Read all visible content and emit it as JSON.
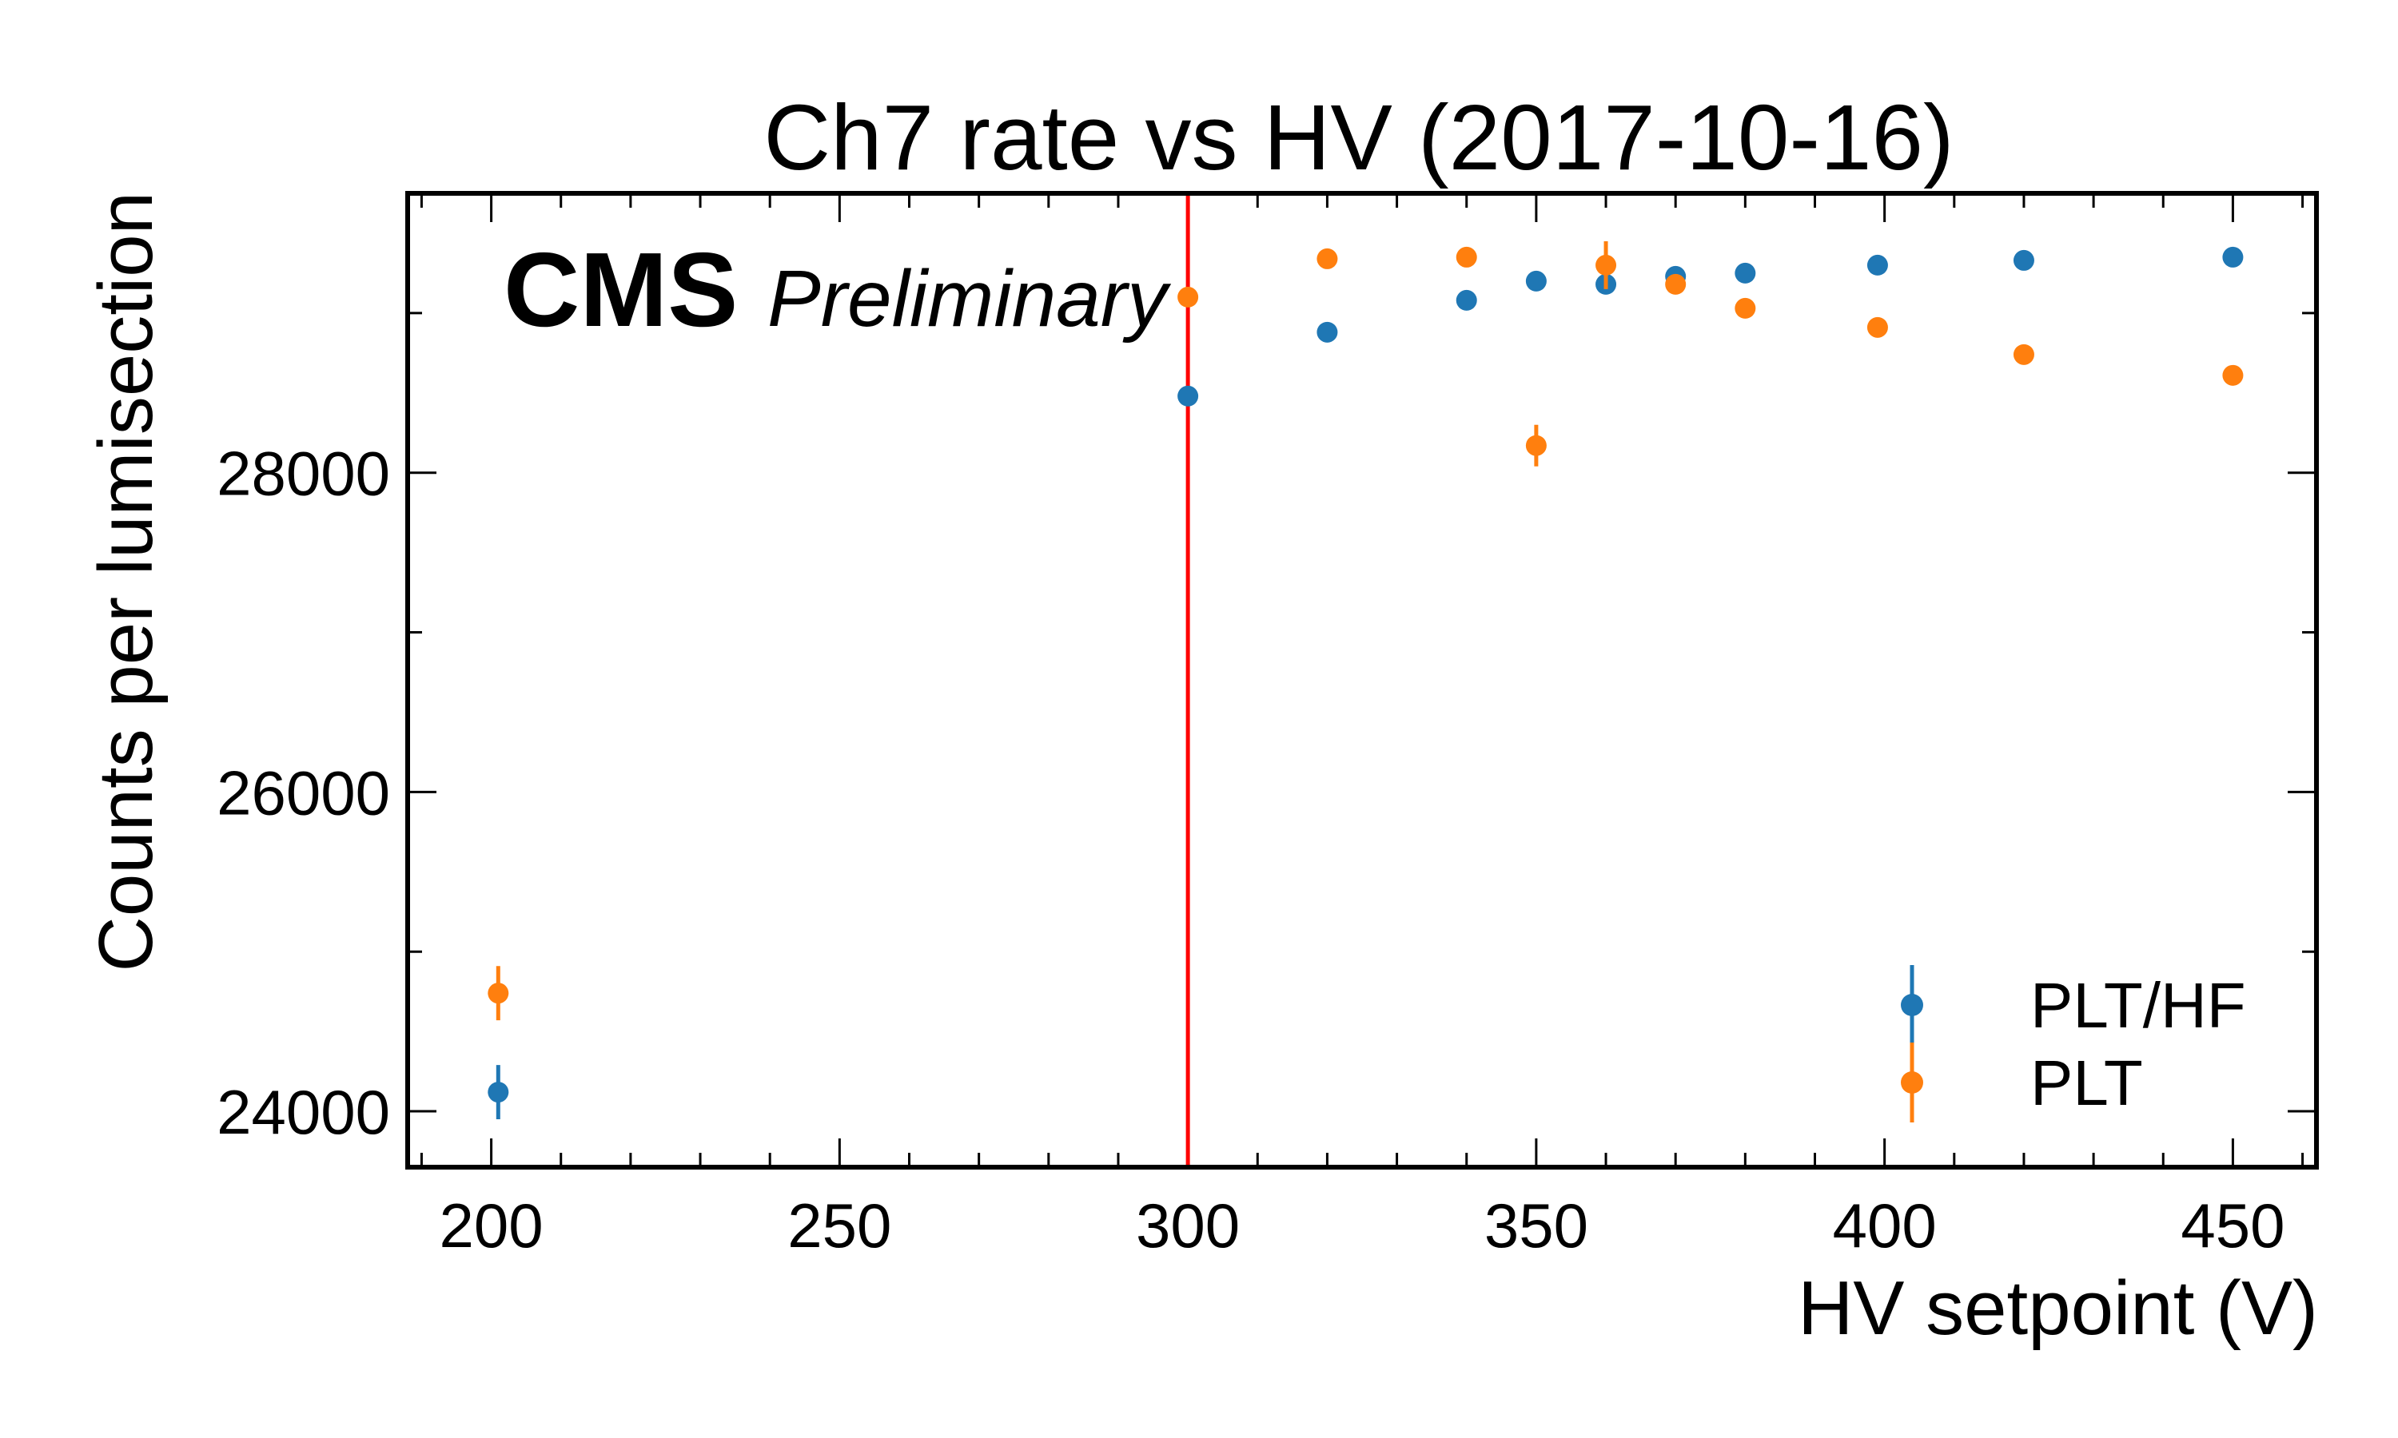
{
  "chart_data": {
    "type": "scatter",
    "title": "Ch7 rate vs HV (2017-10-16)",
    "xlabel": "HV setpoint (V)",
    "ylabel": "Counts per lumisection",
    "xlim": [
      188,
      462
    ],
    "ylim": [
      23650,
      29750
    ],
    "xticks": [
      200,
      250,
      300,
      350,
      400,
      450
    ],
    "yticks": [
      24000,
      26000,
      28000
    ],
    "grid": false,
    "legend_position": "bottom-right",
    "annotation": {
      "experiment": "CMS",
      "status": "Preliminary"
    },
    "reference_line": {
      "orientation": "vertical",
      "x": 300,
      "color": "#ff0000"
    },
    "series": [
      {
        "name": "PLT/HF",
        "color": "#1f77b4",
        "points": [
          {
            "x": 201,
            "y": 24120,
            "err": 170
          },
          {
            "x": 300,
            "y": 28480,
            "err": 0
          },
          {
            "x": 320,
            "y": 28880,
            "err": 0
          },
          {
            "x": 340,
            "y": 29080,
            "err": 0
          },
          {
            "x": 350,
            "y": 29200,
            "err": 0
          },
          {
            "x": 360,
            "y": 29180,
            "err": 0
          },
          {
            "x": 370,
            "y": 29230,
            "err": 0
          },
          {
            "x": 380,
            "y": 29250,
            "err": 0
          },
          {
            "x": 399,
            "y": 29300,
            "err": 0
          },
          {
            "x": 420,
            "y": 29330,
            "err": 0
          },
          {
            "x": 450,
            "y": 29350,
            "err": 0
          }
        ]
      },
      {
        "name": "PLT",
        "color": "#ff7f0e",
        "points": [
          {
            "x": 201,
            "y": 24740,
            "err": 170
          },
          {
            "x": 300,
            "y": 29100,
            "err": 0
          },
          {
            "x": 320,
            "y": 29340,
            "err": 0
          },
          {
            "x": 340,
            "y": 29350,
            "err": 0
          },
          {
            "x": 350,
            "y": 28170,
            "err": 130
          },
          {
            "x": 360,
            "y": 29300,
            "err": 150
          },
          {
            "x": 370,
            "y": 29180,
            "err": 0
          },
          {
            "x": 380,
            "y": 29030,
            "err": 0
          },
          {
            "x": 399,
            "y": 28910,
            "err": 0
          },
          {
            "x": 420,
            "y": 28740,
            "err": 0
          },
          {
            "x": 450,
            "y": 28610,
            "err": 0
          }
        ]
      }
    ]
  }
}
